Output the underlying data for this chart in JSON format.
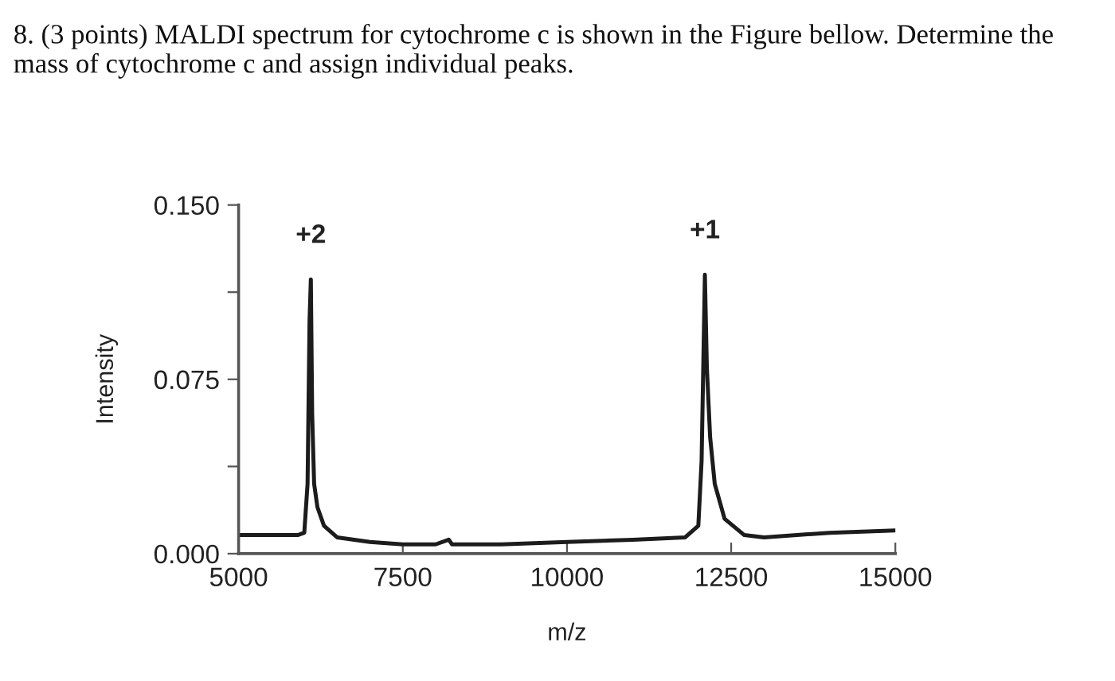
{
  "chart_data": {
    "type": "line",
    "title": "8. (3 points) MALDI spectrum for cytochrome c is shown in the Figure bellow. Determine the mass of cytochrome c and assign individual peaks.",
    "xlabel": "m/z",
    "ylabel": "Intensity",
    "x": [
      5000,
      5500,
      5900,
      6000,
      6050,
      6080,
      6100,
      6120,
      6150,
      6200,
      6300,
      6500,
      7000,
      7500,
      8000,
      8200,
      8250,
      9000,
      10000,
      11000,
      11800,
      12000,
      12050,
      12100,
      12130,
      12180,
      12250,
      12400,
      12700,
      13000,
      14000,
      15000
    ],
    "series": [
      {
        "color": "#1c1c1c",
        "values": [
          0.008,
          0.008,
          0.008,
          0.009,
          0.03,
          0.1,
          0.118,
          0.06,
          0.03,
          0.02,
          0.012,
          0.007,
          0.005,
          0.004,
          0.004,
          0.006,
          0.004,
          0.004,
          0.005,
          0.006,
          0.007,
          0.012,
          0.04,
          0.12,
          0.08,
          0.05,
          0.03,
          0.015,
          0.008,
          0.007,
          0.009,
          0.01
        ]
      }
    ],
    "xlim": [
      5000,
      15000
    ],
    "xticks": [
      5000,
      7500,
      10000,
      12500,
      15000
    ],
    "ylim": [
      0,
      0.15
    ],
    "yticks": [
      {
        "value": 0,
        "label": "0.000"
      },
      {
        "value": 0.0375,
        "label": null
      },
      {
        "value": 0.075,
        "label": "0.075"
      },
      {
        "value": 0.1125,
        "label": null
      },
      {
        "value": 0.15,
        "label": "0.150"
      }
    ],
    "annotations": [
      {
        "text": "+2",
        "x": 6100,
        "y": 0.118
      },
      {
        "text": "+1",
        "x": 12100,
        "y": 0.12
      }
    ]
  }
}
